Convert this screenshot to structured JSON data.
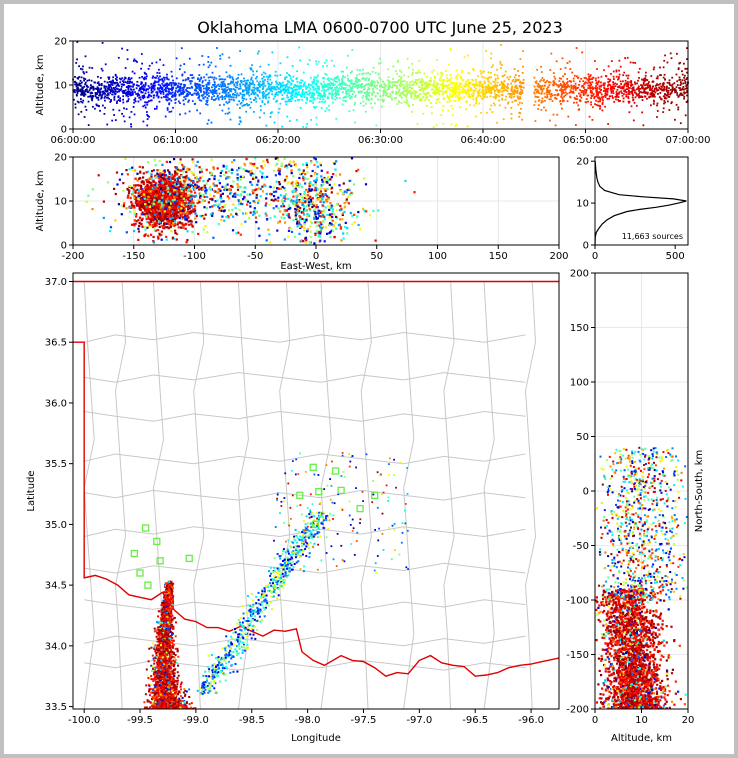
{
  "title": "Oklahoma LMA 0600-0700 UTC June 25, 2023",
  "colors": {
    "background": "#c0c0c0",
    "state_border": "#e00000",
    "county_lines": "#c8c8c8",
    "station_marker": "#66ee44",
    "histogram_line": "#000000"
  },
  "chart_data": [
    {
      "id": "alt-time",
      "type": "scatter",
      "ylabel": "Altitude, km",
      "ylim": [
        0,
        20
      ],
      "yticks": [
        "0",
        "10",
        "20"
      ],
      "xlim": [
        "06:00:00",
        "07:00:00"
      ],
      "xticks": [
        "06:00:00",
        "06:10:00",
        "06:20:00",
        "06:30:00",
        "06:40:00",
        "06:50:00",
        "07:00:00"
      ],
      "grid": true,
      "color_encoding": "time (blue to red)",
      "gap": [
        "06:44:00",
        "06:45:00"
      ],
      "altitude_mean_km": 9
    },
    {
      "id": "alt-ew",
      "type": "scatter",
      "xlabel": "East-West, km",
      "ylabel": "Altitude, km",
      "xlim": [
        -200,
        200
      ],
      "ylim": [
        0,
        20
      ],
      "xticks": [
        "-200",
        "-150",
        "-100",
        "-50",
        "0",
        "50",
        "100",
        "150",
        "200"
      ],
      "yticks": [
        "0",
        "10",
        "20"
      ],
      "grid": true,
      "clusters": [
        {
          "x_center": -125,
          "x_spread": 12,
          "alt_center": 10,
          "alt_spread": 3,
          "color": "late-red"
        },
        {
          "x_center": -70,
          "x_spread": 45,
          "alt_center": 12,
          "alt_spread": 5,
          "color": "mixed"
        },
        {
          "x_center": 0,
          "x_spread": 15,
          "alt_center": 9,
          "alt_spread": 5,
          "color": "mixed"
        }
      ]
    },
    {
      "id": "alt-hist",
      "type": "line",
      "xlim": [
        0,
        580
      ],
      "ylim": [
        0,
        21
      ],
      "xticks": [
        "0",
        "500"
      ],
      "yticks": [
        "0",
        "10",
        "20"
      ],
      "annotation": "11,663 sources",
      "profile": [
        {
          "alt": 0,
          "count": 0
        },
        {
          "alt": 2,
          "count": 2
        },
        {
          "alt": 3,
          "count": 8
        },
        {
          "alt": 4,
          "count": 25
        },
        {
          "alt": 5,
          "count": 45
        },
        {
          "alt": 6,
          "count": 75
        },
        {
          "alt": 7,
          "count": 120
        },
        {
          "alt": 8,
          "count": 200
        },
        {
          "alt": 8.5,
          "count": 280
        },
        {
          "alt": 9,
          "count": 380
        },
        {
          "alt": 9.5,
          "count": 460
        },
        {
          "alt": 10,
          "count": 520
        },
        {
          "alt": 10.5,
          "count": 570
        },
        {
          "alt": 11,
          "count": 490
        },
        {
          "alt": 11.5,
          "count": 300
        },
        {
          "alt": 12,
          "count": 150
        },
        {
          "alt": 13,
          "count": 60
        },
        {
          "alt": 14,
          "count": 30
        },
        {
          "alt": 15,
          "count": 18
        },
        {
          "alt": 16,
          "count": 12
        },
        {
          "alt": 17,
          "count": 8
        },
        {
          "alt": 18,
          "count": 5
        },
        {
          "alt": 19,
          "count": 3
        },
        {
          "alt": 20,
          "count": 1
        }
      ]
    },
    {
      "id": "plan-map",
      "type": "scatter",
      "xlabel": "Longitude",
      "ylabel": "Latitude",
      "xlim": [
        -100.1,
        -95.75
      ],
      "ylim": [
        33.48,
        37.07
      ],
      "xticks": [
        "-100.0",
        "-99.5",
        "-99.0",
        "-98.5",
        "-98.0",
        "-97.5",
        "-97.0",
        "-96.5",
        "-96.0"
      ],
      "yticks": [
        "33.5",
        "34.0",
        "34.5",
        "35.0",
        "35.5",
        "36.0",
        "36.5",
        "37.0"
      ],
      "stations": [
        {
          "lon": -99.45,
          "lat": 34.97
        },
        {
          "lon": -99.35,
          "lat": 34.86
        },
        {
          "lon": -99.55,
          "lat": 34.76
        },
        {
          "lon": -99.32,
          "lat": 34.7
        },
        {
          "lon": -99.06,
          "lat": 34.72
        },
        {
          "lon": -99.5,
          "lat": 34.6
        },
        {
          "lon": -99.43,
          "lat": 34.5
        },
        {
          "lon": -97.95,
          "lat": 35.47
        },
        {
          "lon": -97.75,
          "lat": 35.44
        },
        {
          "lon": -98.07,
          "lat": 35.24
        },
        {
          "lon": -97.9,
          "lat": 35.27
        },
        {
          "lon": -97.7,
          "lat": 35.28
        },
        {
          "lon": -97.4,
          "lat": 35.24
        },
        {
          "lon": -97.53,
          "lat": 35.13
        },
        {
          "lon": -97.93,
          "lat": 35.0
        }
      ]
    },
    {
      "id": "alt-ns",
      "type": "scatter",
      "xlabel": "Altitude, km",
      "ylabel": "North-South, km",
      "xlim": [
        0,
        20
      ],
      "ylim": [
        -200,
        200
      ],
      "xticks": [
        "0",
        "10",
        "20"
      ],
      "yticks": [
        "-200",
        "-150",
        "-100",
        "-50",
        "0",
        "50",
        "100",
        "150",
        "200"
      ],
      "grid": true
    }
  ]
}
